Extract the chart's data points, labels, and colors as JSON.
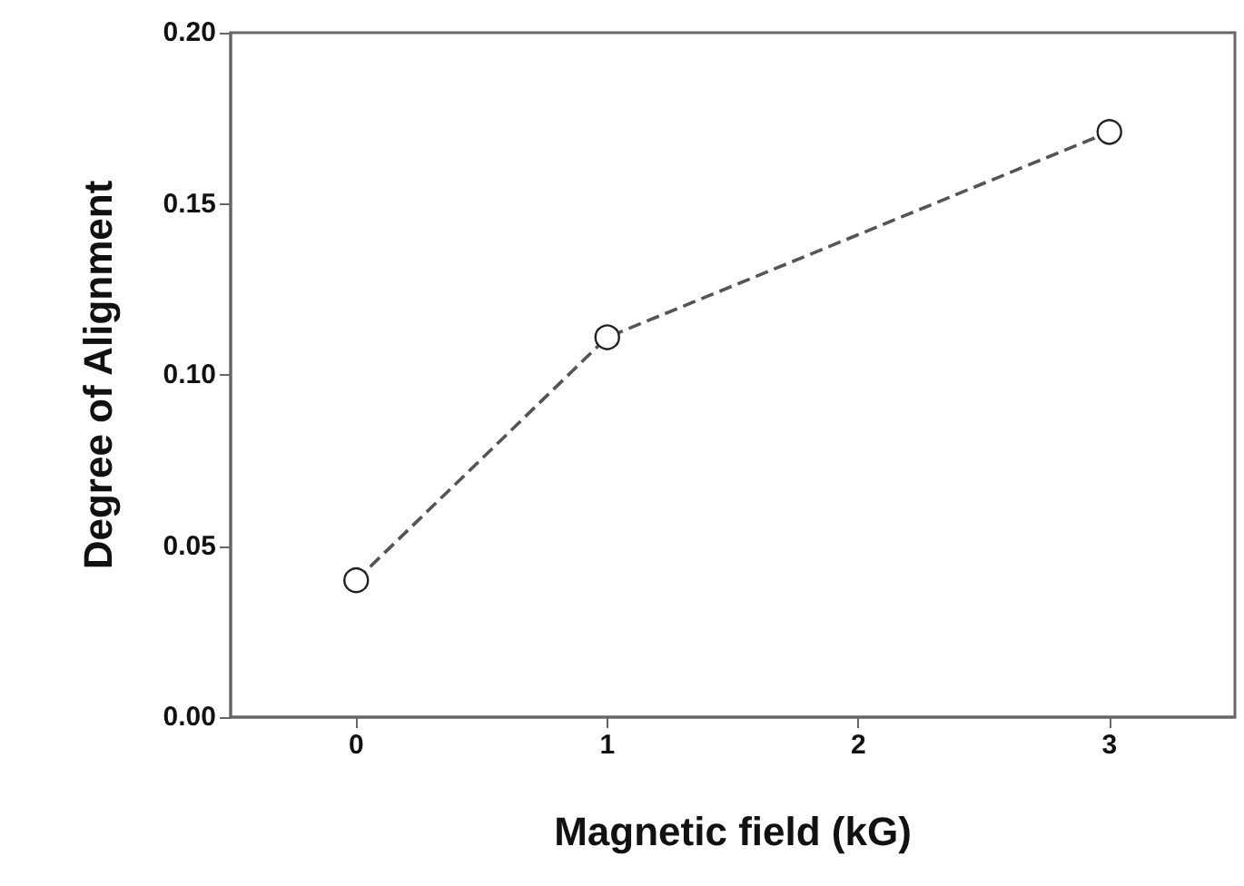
{
  "chart_data": {
    "type": "line",
    "xlabel": "Magnetic field (kG)",
    "ylabel": "Degree of Alignment",
    "x": [
      0,
      1,
      3
    ],
    "series": [
      {
        "color": "#555555",
        "values": [
          0.04,
          0.111,
          0.171
        ]
      }
    ],
    "xlim": [
      -0.5,
      3.5
    ],
    "xticks": [
      0,
      1,
      2,
      3
    ],
    "ylim": [
      0,
      0.2
    ],
    "yticks": [
      {
        "value": 0,
        "label": "0.00"
      },
      {
        "value": 0.05,
        "label": "0.05"
      },
      {
        "value": 0.1,
        "label": "0.10"
      },
      {
        "value": 0.15,
        "label": "0.15"
      },
      {
        "value": 0.2,
        "label": "0.20"
      }
    ],
    "marker": "circle",
    "line_style": "dashed"
  }
}
